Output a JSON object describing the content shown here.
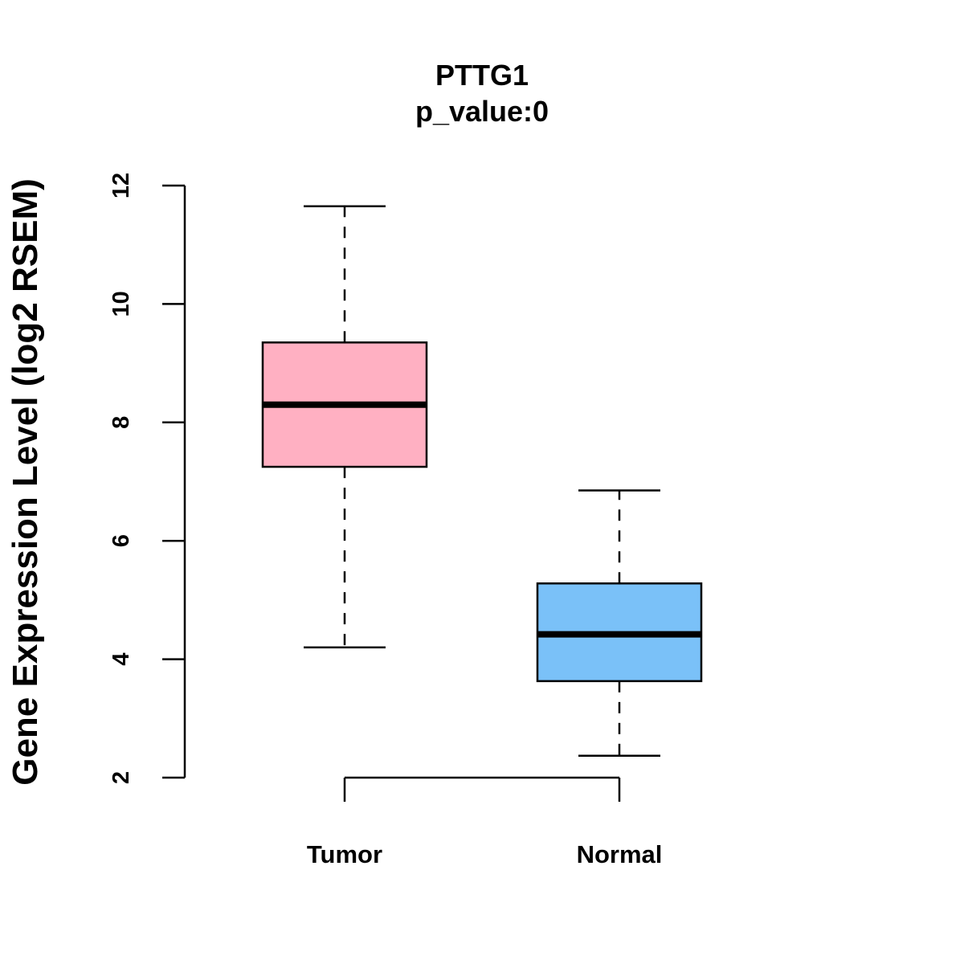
{
  "chart_data": {
    "type": "boxplot",
    "title": "PTTG1",
    "subtitle": "p_value:0",
    "xlabel": "",
    "ylabel": "Gene Expression Level (log2 RSEM)",
    "ylim": [
      2,
      12
    ],
    "yticks": [
      2,
      4,
      6,
      8,
      10,
      12
    ],
    "categories": [
      "Tumor",
      "Normal"
    ],
    "series": [
      {
        "name": "Tumor",
        "color": "#FFB0C2",
        "whisker_low": 4.2,
        "q1": 7.25,
        "median": 8.3,
        "q3": 9.35,
        "whisker_high": 11.65
      },
      {
        "name": "Normal",
        "color": "#7AC1F8",
        "whisker_low": 2.37,
        "q1": 3.63,
        "median": 4.42,
        "q3": 5.28,
        "whisker_high": 6.85
      }
    ],
    "grid": false,
    "legend": "none"
  }
}
